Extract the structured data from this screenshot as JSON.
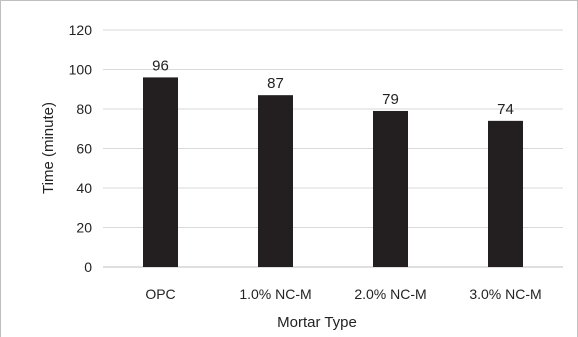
{
  "chart_data": {
    "type": "bar",
    "categories": [
      "OPC",
      "1.0% NC-M",
      "2.0% NC-M",
      "3.0% NC-M"
    ],
    "values": [
      96,
      87,
      79,
      74
    ],
    "data_labels": [
      "96",
      "87",
      "79",
      "74"
    ],
    "title": "",
    "xlabel": "Mortar Type",
    "ylabel": "Time (minute)",
    "ylim": [
      0,
      120
    ],
    "yticks": [
      0,
      20,
      40,
      60,
      80,
      100,
      120
    ],
    "ytick_labels": [
      "0",
      "20",
      "40",
      "60",
      "80",
      "100",
      "120"
    ],
    "grid": true,
    "legend": "none",
    "colors": {
      "bar": "#231f20",
      "grid": "#d9d9d9",
      "axis": "#bfbfbf"
    }
  }
}
